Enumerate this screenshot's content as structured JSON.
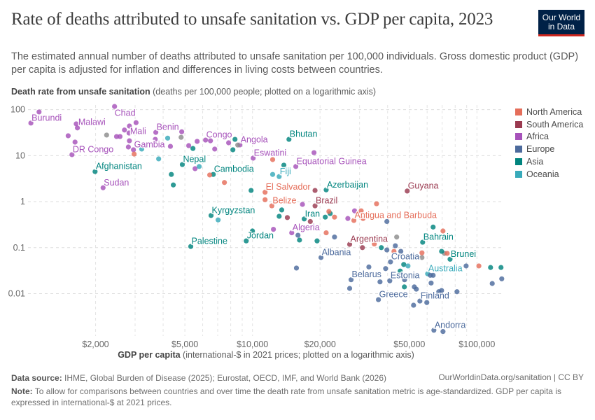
{
  "header": {
    "title": "Rate of deaths attributed to unsafe sanitation vs. GDP per capita, 2023",
    "subtitle": "The estimated annual number of deaths attributed to unsafe sanitation per 100,000 individuals. Gross domestic product (GDP) per capita is adjusted for inflation and differences in living costs between countries.",
    "logo_line1": "Our World",
    "logo_line2": "in Data"
  },
  "footer": {
    "source_label": "Data source:",
    "source_text": " IHME, Global Burden of Disease (2025); Eurostat, OECD, IMF, and World Bank (2026)",
    "url": "OurWorldinData.org/sanitation | CC BY",
    "note_label": "Note:",
    "note_text": " To allow for comparisons between countries and over time the death rate from unsafe sanitation metric is age-standardized. GDP per capita is expressed in international-$ at 2021 prices."
  },
  "chart_data": {
    "type": "scatter",
    "title": "Rate of deaths attributed to unsafe sanitation vs. GDP per capita, 2023",
    "xlabel_bold": "GDP per capita",
    "xlabel_rest": " (international-$ in 2021 prices; plotted on a logarithmic axis)",
    "ylabel_bold": "Death rate from unsafe sanitation",
    "ylabel_rest": " (deaths per 100,000 people; plotted on a logarithmic axis)",
    "xscale": "log",
    "yscale": "log",
    "xlim": [
      1000,
      132000
    ],
    "ylim": [
      0.0012,
      126
    ],
    "grid": true,
    "legend_position": "right",
    "x_ticks": [
      {
        "value": 2000,
        "label": "$2,000"
      },
      {
        "value": 5000,
        "label": "$5,000"
      },
      {
        "value": 10000,
        "label": "$10,000"
      },
      {
        "value": 20000,
        "label": "$20,000"
      },
      {
        "value": 50000,
        "label": "$50,000"
      },
      {
        "value": 100000,
        "label": "$100,000"
      }
    ],
    "y_ticks": [
      {
        "value": 100,
        "label": "100"
      },
      {
        "value": 10,
        "label": "10"
      },
      {
        "value": 1,
        "label": "1"
      },
      {
        "value": 0.1,
        "label": "0.1"
      },
      {
        "value": 0.01,
        "label": "0.01"
      }
    ],
    "legend": [
      {
        "name": "North America",
        "color": "#e56e5a"
      },
      {
        "name": "South America",
        "color": "#9a3a50"
      },
      {
        "name": "Africa",
        "color": "#a652ba"
      },
      {
        "name": "Europe",
        "color": "#4c6a9c"
      },
      {
        "name": "Asia",
        "color": "#00847e"
      },
      {
        "name": "Oceania",
        "color": "#38aaba"
      }
    ],
    "no_region_color": "#8c8c8c",
    "point_fields": [
      "gdp_per_capita",
      "death_rate",
      "region",
      "label"
    ],
    "points": [
      [
        1030,
        51,
        "Africa",
        "Burundi"
      ],
      [
        1120,
        89,
        "Africa",
        ""
      ],
      [
        1640,
        49,
        "Africa",
        "Malawi"
      ],
      [
        1660,
        40,
        "Africa",
        ""
      ],
      [
        1510,
        27,
        "Africa",
        ""
      ],
      [
        1570,
        10.5,
        "Africa",
        "DR Congo"
      ],
      [
        1620,
        19.7,
        "Africa",
        ""
      ],
      [
        2160,
        2.0,
        "Africa",
        "Sudan"
      ],
      [
        2430,
        117,
        "Africa",
        "Chad"
      ],
      [
        3030,
        52,
        "Africa",
        ""
      ],
      [
        2690,
        36,
        "Africa",
        ""
      ],
      [
        2820,
        31,
        "Africa",
        ""
      ],
      [
        2830,
        44,
        "Africa",
        "Mali"
      ],
      [
        2480,
        26,
        "Africa",
        ""
      ],
      [
        2570,
        26,
        "Africa",
        ""
      ],
      [
        2830,
        21,
        "Africa",
        ""
      ],
      [
        2800,
        15.4,
        "Africa",
        ""
      ],
      [
        2950,
        13.4,
        "Africa",
        "Gambia"
      ],
      [
        3710,
        32,
        "Africa",
        "Benin"
      ],
      [
        3690,
        22.6,
        "Africa",
        ""
      ],
      [
        4310,
        15.9,
        "Africa",
        ""
      ],
      [
        4840,
        33,
        "Africa",
        ""
      ],
      [
        6180,
        21.8,
        "Africa",
        "Congo"
      ],
      [
        6500,
        21,
        "Africa",
        ""
      ],
      [
        5670,
        20.4,
        "Africa",
        ""
      ],
      [
        5200,
        16.5,
        "Africa",
        ""
      ],
      [
        6790,
        13.9,
        "Africa",
        ""
      ],
      [
        7830,
        19,
        "Africa",
        ""
      ],
      [
        8790,
        17.1,
        "Africa",
        "Angola"
      ],
      [
        10070,
        8.8,
        "Africa",
        "Eswatini"
      ],
      [
        18800,
        11.6,
        "Africa",
        ""
      ],
      [
        15600,
        5.8,
        "Africa",
        "Equatorial Guinea"
      ],
      [
        5550,
        5.2,
        "Africa",
        ""
      ],
      [
        14960,
        0.21,
        "Africa",
        "Algeria"
      ],
      [
        12400,
        0.25,
        "Africa",
        ""
      ],
      [
        16700,
        0.87,
        "Africa",
        ""
      ],
      [
        28500,
        0.63,
        "Africa",
        ""
      ],
      [
        26600,
        0.43,
        "Africa",
        ""
      ],
      [
        2240,
        28,
        "",
        ""
      ],
      [
        4810,
        25,
        "",
        ""
      ],
      [
        8600,
        17,
        "",
        ""
      ],
      [
        43900,
        0.17,
        "",
        ""
      ],
      [
        56900,
        0.061,
        "",
        ""
      ],
      [
        71600,
        0.075,
        "",
        ""
      ],
      [
        1990,
        4.5,
        "Asia",
        "Afghanistan"
      ],
      [
        4870,
        6.4,
        "Asia",
        "Nepal"
      ],
      [
        4350,
        3.9,
        "Asia",
        ""
      ],
      [
        4440,
        2.3,
        "Asia",
        ""
      ],
      [
        5430,
        14.3,
        "Asia",
        ""
      ],
      [
        8360,
        22.6,
        "Asia",
        ""
      ],
      [
        8180,
        13.4,
        "Asia",
        ""
      ],
      [
        14540,
        22.6,
        "Asia",
        "Bhutan"
      ],
      [
        6690,
        3.9,
        "Asia",
        "Cambodia"
      ],
      [
        9860,
        1.75,
        "Asia",
        ""
      ],
      [
        13800,
        6.2,
        "Asia",
        ""
      ],
      [
        21300,
        1.8,
        "Asia",
        "Azerbaijan"
      ],
      [
        6540,
        0.5,
        "Asia",
        "Kyrgyzstan"
      ],
      [
        5310,
        0.106,
        "Asia",
        "Palestine"
      ],
      [
        9380,
        0.14,
        "Asia",
        "Jordan"
      ],
      [
        10000,
        0.23,
        "Asia",
        ""
      ],
      [
        13500,
        0.66,
        "Asia",
        ""
      ],
      [
        13150,
        0.48,
        "Asia",
        ""
      ],
      [
        17000,
        0.42,
        "Asia",
        "Iran"
      ],
      [
        16200,
        0.146,
        "Asia",
        ""
      ],
      [
        19400,
        0.14,
        "Asia",
        ""
      ],
      [
        21100,
        0.46,
        "Asia",
        ""
      ],
      [
        22200,
        0.55,
        "Asia",
        ""
      ],
      [
        57300,
        0.131,
        "Asia",
        "Bahrain"
      ],
      [
        63800,
        0.28,
        "Asia",
        ""
      ],
      [
        37500,
        0.1,
        "Asia",
        ""
      ],
      [
        69600,
        0.083,
        "Asia",
        ""
      ],
      [
        75900,
        0.056,
        "Asia",
        "Brunei"
      ],
      [
        115000,
        0.037,
        "Asia",
        ""
      ],
      [
        128000,
        0.037,
        "Asia",
        ""
      ],
      [
        47200,
        0.043,
        "Asia",
        ""
      ],
      [
        45500,
        0.031,
        "Asia",
        ""
      ],
      [
        47500,
        0.014,
        "Asia",
        ""
      ],
      [
        4190,
        24,
        "Oceania",
        ""
      ],
      [
        3210,
        13.9,
        "Oceania",
        ""
      ],
      [
        3820,
        8.5,
        "Oceania",
        ""
      ],
      [
        5790,
        5.8,
        "Oceania",
        ""
      ],
      [
        12300,
        3.9,
        "Oceania",
        ""
      ],
      [
        13150,
        3.5,
        "Oceania",
        "Fiji"
      ],
      [
        7030,
        0.4,
        "Oceania",
        ""
      ],
      [
        60300,
        0.027,
        "Oceania",
        "Australia"
      ],
      [
        49300,
        0.04,
        "Oceania",
        ""
      ],
      [
        2970,
        10.8,
        "North America",
        ""
      ],
      [
        6450,
        3.8,
        "North America",
        ""
      ],
      [
        7500,
        2.6,
        "North America",
        ""
      ],
      [
        12300,
        8.2,
        "North America",
        ""
      ],
      [
        11380,
        1.6,
        "North America",
        "El Salvador"
      ],
      [
        11380,
        1.1,
        "North America",
        ""
      ],
      [
        12200,
        0.81,
        "North America",
        "Belize"
      ],
      [
        21900,
        0.61,
        "North America",
        ""
      ],
      [
        23200,
        0.46,
        "North America",
        ""
      ],
      [
        21300,
        0.21,
        "North America",
        ""
      ],
      [
        35700,
        0.9,
        "North America",
        ""
      ],
      [
        30500,
        0.63,
        "North America",
        ""
      ],
      [
        31100,
        0.43,
        "North America",
        ""
      ],
      [
        28300,
        0.39,
        "North America",
        "Antigua and Barbuda"
      ],
      [
        34900,
        0.12,
        "North America",
        ""
      ],
      [
        42700,
        0.083,
        "North America",
        ""
      ],
      [
        70600,
        0.23,
        "North America",
        ""
      ],
      [
        56900,
        0.077,
        "North America",
        ""
      ],
      [
        73700,
        0.075,
        "North America",
        ""
      ],
      [
        102000,
        0.04,
        "North America",
        ""
      ],
      [
        48900,
        1.7,
        "South America",
        "Guyana"
      ],
      [
        19000,
        1.75,
        "South America",
        ""
      ],
      [
        19000,
        0.81,
        "South America",
        "Brazil"
      ],
      [
        14300,
        0.45,
        "South America",
        ""
      ],
      [
        18100,
        0.37,
        "South America",
        ""
      ],
      [
        27100,
        0.118,
        "South America",
        "Argentina"
      ],
      [
        30900,
        0.1,
        "South America",
        ""
      ],
      [
        20200,
        0.061,
        "Europe",
        "Albania"
      ],
      [
        15700,
        0.036,
        "Europe",
        ""
      ],
      [
        15950,
        0.186,
        "Europe",
        ""
      ],
      [
        23200,
        0.17,
        "Europe",
        ""
      ],
      [
        39700,
        0.37,
        "Europe",
        ""
      ],
      [
        39700,
        0.089,
        "Europe",
        ""
      ],
      [
        43300,
        0.11,
        "Europe",
        ""
      ],
      [
        45800,
        0.083,
        "Europe",
        ""
      ],
      [
        41200,
        0.049,
        "Europe",
        "Croatia"
      ],
      [
        33000,
        0.038,
        "Europe",
        ""
      ],
      [
        39200,
        0.035,
        "Europe",
        ""
      ],
      [
        27500,
        0.02,
        "Europe",
        "Belarus"
      ],
      [
        27100,
        0.013,
        "Europe",
        ""
      ],
      [
        37000,
        0.018,
        "Europe",
        ""
      ],
      [
        40900,
        0.019,
        "Europe",
        "Estonia"
      ],
      [
        47600,
        0.02,
        "Europe",
        ""
      ],
      [
        36400,
        0.0074,
        "Europe",
        "Greece"
      ],
      [
        52600,
        0.014,
        "Europe",
        ""
      ],
      [
        53700,
        0.0125,
        "Europe",
        ""
      ],
      [
        52200,
        0.0056,
        "Europe",
        ""
      ],
      [
        55700,
        0.0069,
        "Europe",
        "Finland"
      ],
      [
        59800,
        0.0064,
        "Europe",
        ""
      ],
      [
        62000,
        0.025,
        "Europe",
        ""
      ],
      [
        63800,
        0.025,
        "Europe",
        ""
      ],
      [
        62500,
        0.017,
        "Europe",
        ""
      ],
      [
        67600,
        0.011,
        "Europe",
        ""
      ],
      [
        69600,
        0.0117,
        "Europe",
        ""
      ],
      [
        81500,
        0.011,
        "Europe",
        ""
      ],
      [
        89500,
        0.04,
        "Europe",
        ""
      ],
      [
        117000,
        0.0166,
        "Europe",
        ""
      ],
      [
        129000,
        0.021,
        "Europe",
        ""
      ],
      [
        64300,
        0.0016,
        "Europe",
        "Andorra"
      ],
      [
        70600,
        0.0015,
        "Europe",
        ""
      ]
    ]
  }
}
